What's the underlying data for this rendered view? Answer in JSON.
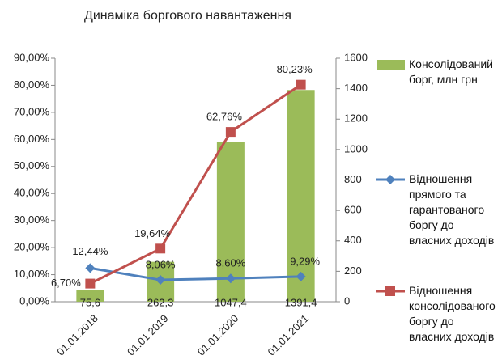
{
  "chart_data": {
    "type": "bar",
    "title": "Динаміка боргового навантаження",
    "categories": [
      "01.01.2018",
      "01.01.2019",
      "01.01.2020",
      "01.01.2021"
    ],
    "series": [
      {
        "name": "Консолідований борг, млн грн",
        "type": "bar",
        "axis": "y2",
        "color": "#9bbb59",
        "values": [
          75.6,
          262.3,
          1047.4,
          1391.4
        ],
        "value_labels": [
          "75,6",
          "262,3",
          "1047,4",
          "1391,4"
        ]
      },
      {
        "name": "Відношення прямого та гарантованого боргу до власних доходів",
        "type": "line",
        "marker": "diamond",
        "color": "#4f81bd",
        "values": [
          12.44,
          8.06,
          8.6,
          9.29
        ],
        "value_labels": [
          "12,44%",
          "8,06%",
          "8,60%",
          "9,29%"
        ]
      },
      {
        "name": "Відношення консолідованого боргу до власних доходів",
        "type": "line",
        "marker": "square",
        "color": "#c0504d",
        "values": [
          6.7,
          19.64,
          62.76,
          80.23
        ],
        "value_labels": [
          "6,70%",
          "19,64%",
          "62,76%",
          "80,23%"
        ]
      }
    ],
    "ylim": [
      0,
      90
    ],
    "yticks": [
      {
        "value": 0,
        "label": "0,00%"
      },
      {
        "value": 10,
        "label": "10,00%"
      },
      {
        "value": 20,
        "label": "20,00%"
      },
      {
        "value": 30,
        "label": "30,00%"
      },
      {
        "value": 40,
        "label": "40,00%"
      },
      {
        "value": 50,
        "label": "50,00%"
      },
      {
        "value": 60,
        "label": "60,00%"
      },
      {
        "value": 70,
        "label": "70,00%"
      },
      {
        "value": 80,
        "label": "80,00%"
      },
      {
        "value": 90,
        "label": "90,00%"
      }
    ],
    "y2lim": [
      0,
      1600
    ],
    "y2ticks": [
      0,
      200,
      400,
      600,
      800,
      1000,
      1200,
      1400,
      1600
    ],
    "legend": "right"
  }
}
